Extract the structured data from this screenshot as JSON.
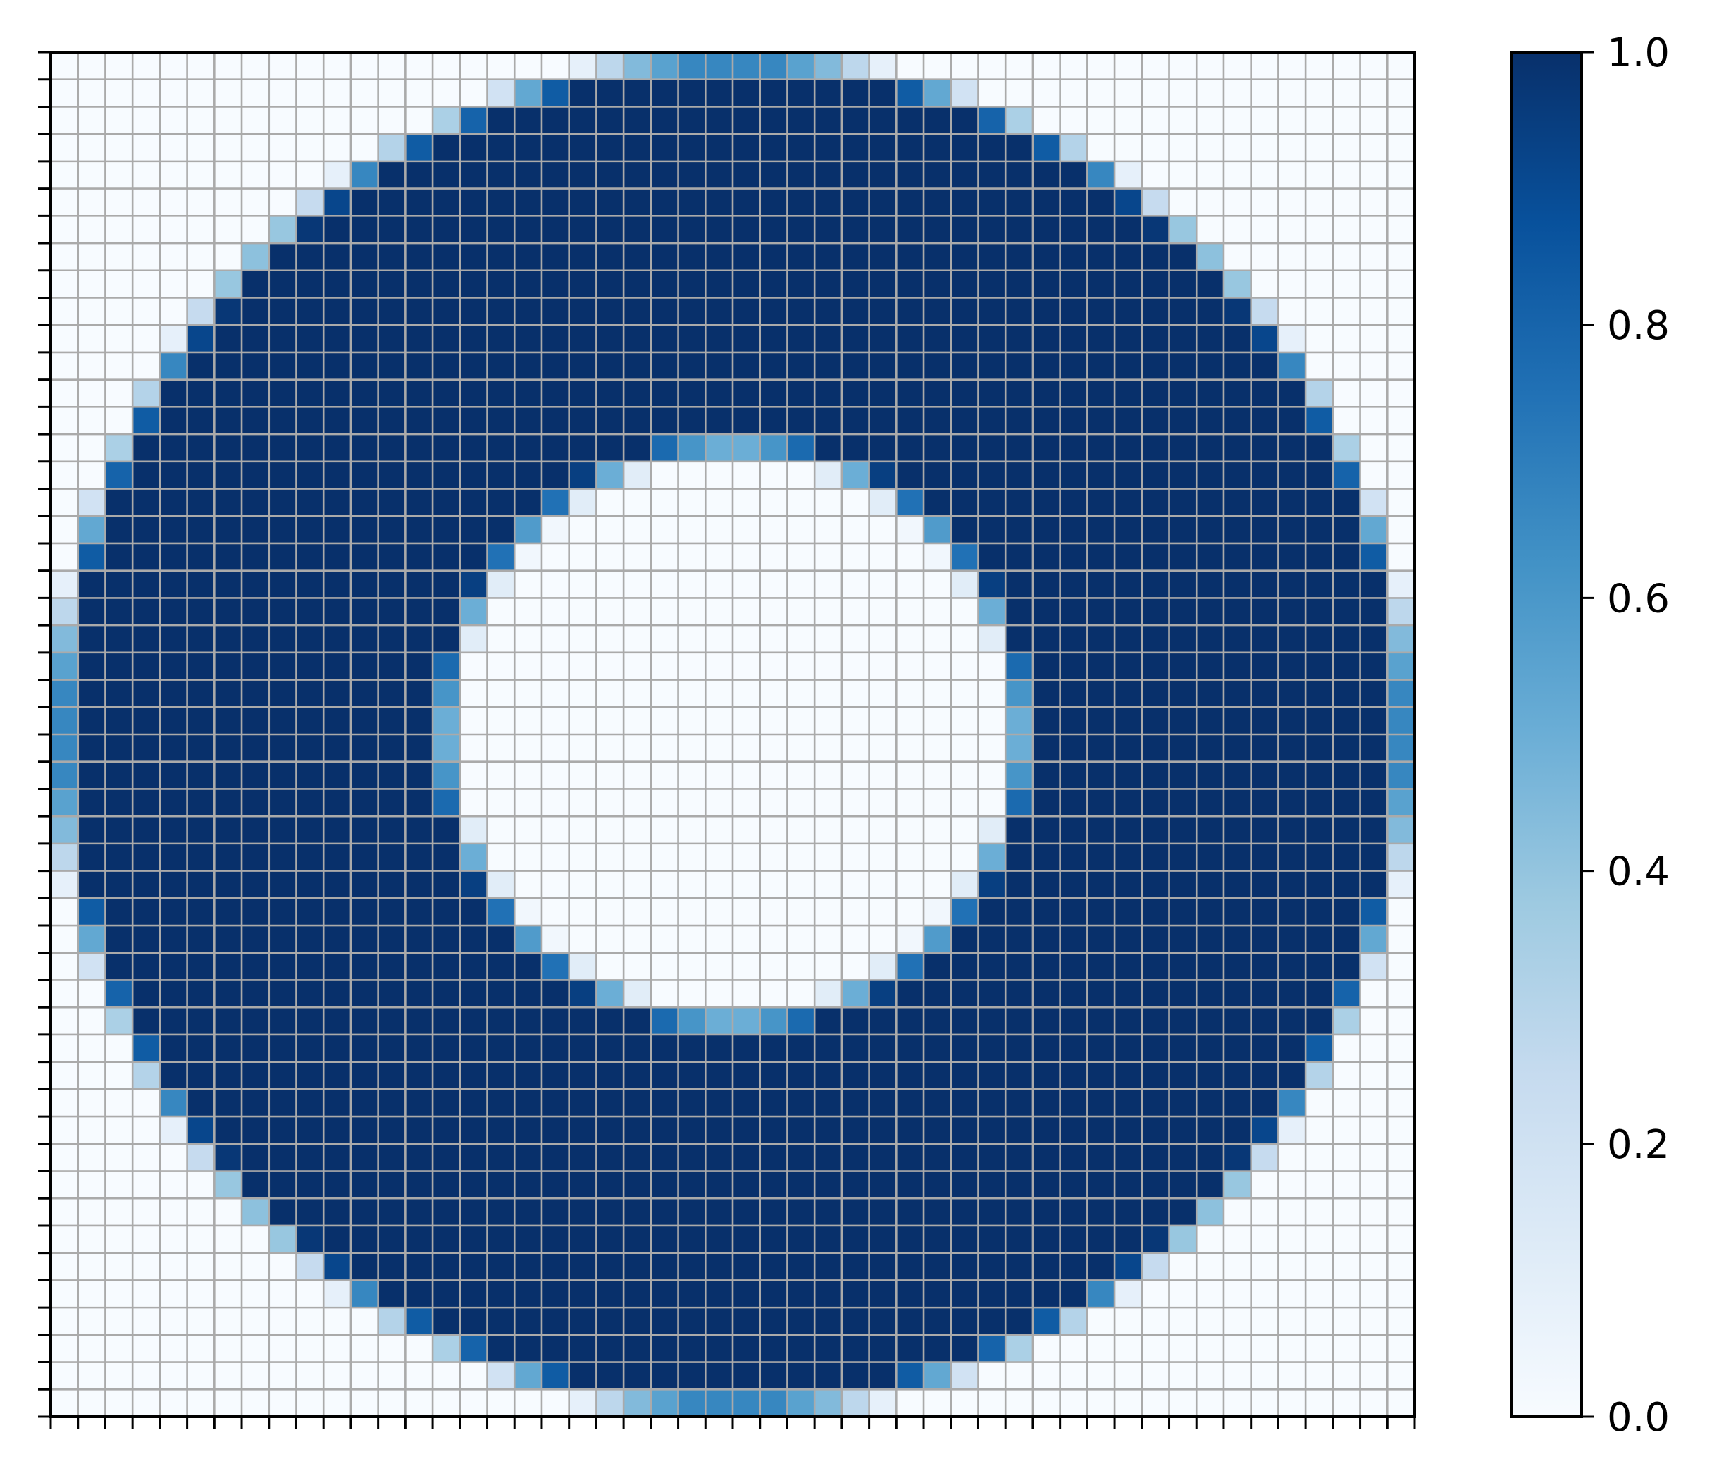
{
  "chart_data": {
    "type": "heatmap",
    "title": "",
    "xlabel": "",
    "ylabel": "",
    "rows": 50,
    "cols": 50,
    "value_range": [
      0,
      1
    ],
    "colormap": "Blues",
    "colormap_stops": [
      "#f7fbff",
      "#deebf7",
      "#c6dbef",
      "#9ecae1",
      "#6baed6",
      "#4292c6",
      "#2171b5",
      "#08519c",
      "#08306b"
    ],
    "grid": true,
    "grid_color": "#aaaaaa",
    "x_tick_labels_shown": false,
    "y_tick_labels_shown": false,
    "description_of_values": "Each cell value = fraction of the cell covered by an annulus centred on the grid; inner radius 10.5 cells, outer radius 24.7 cells; corners reach about 0.25.",
    "annulus": {
      "center_row": 24.5,
      "center_col": 24.5,
      "inner_radius": 10.5,
      "outer_radius": 24.7
    },
    "colorbar": {
      "ticks": [
        0.0,
        0.2,
        0.4,
        0.6,
        0.8,
        1.0
      ],
      "tick_labels": [
        "0.0",
        "0.2",
        "0.4",
        "0.6",
        "0.8",
        "1.0"
      ]
    }
  }
}
